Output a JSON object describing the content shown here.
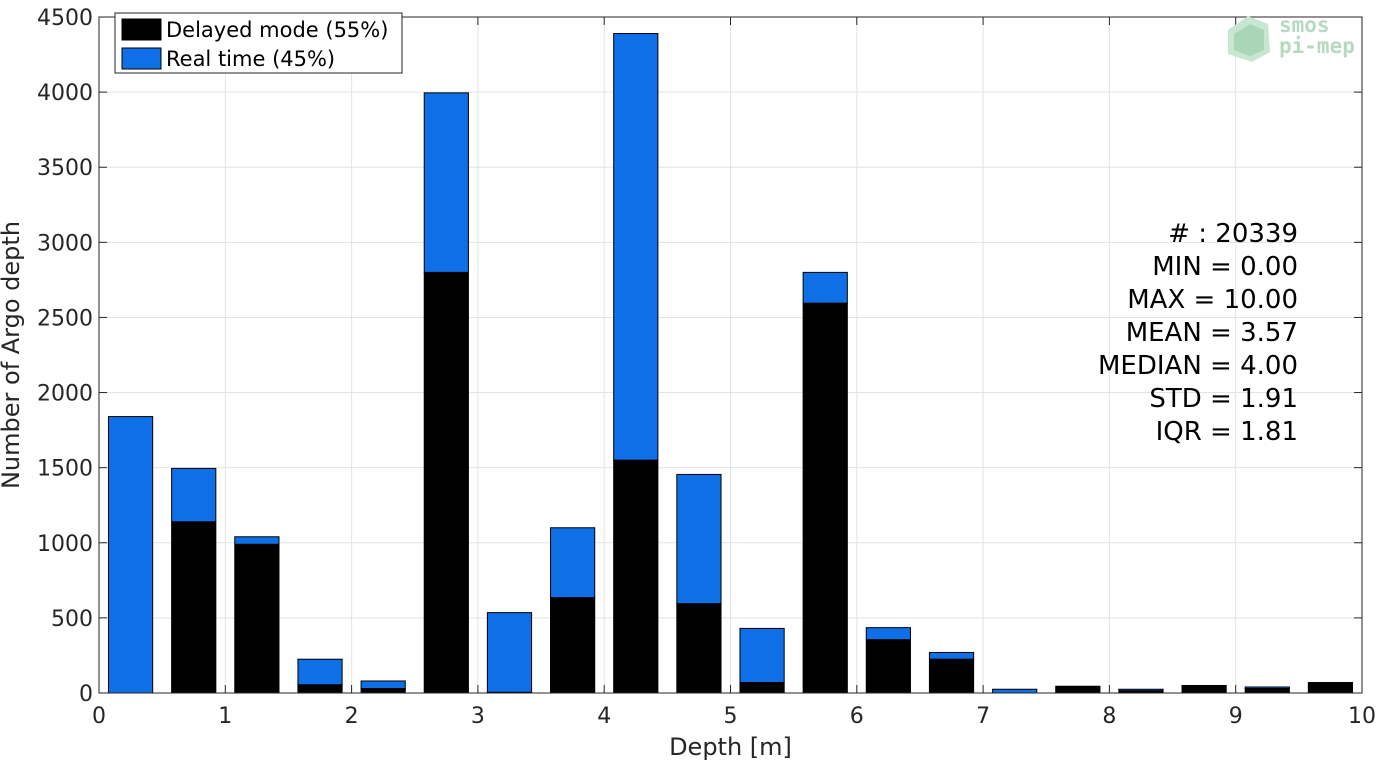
{
  "chart_data": {
    "type": "bar",
    "stacked": true,
    "xlabel": "Depth [m]",
    "ylabel": "Number of Argo depth",
    "xlim": [
      0,
      10
    ],
    "ylim": [
      0,
      4500
    ],
    "xticks": [
      "0",
      "1",
      "2",
      "3",
      "4",
      "5",
      "6",
      "7",
      "8",
      "9",
      "10"
    ],
    "yticks": [
      "0",
      "500",
      "1000",
      "1500",
      "2000",
      "2500",
      "3000",
      "3500",
      "4000",
      "4500"
    ],
    "grid": true,
    "legend_position": "top-left",
    "bin_centers": [
      0.25,
      0.75,
      1.25,
      1.75,
      2.25,
      2.75,
      3.25,
      3.75,
      4.25,
      4.75,
      5.25,
      5.75,
      6.25,
      6.75,
      7.25,
      7.75,
      8.25,
      8.75,
      9.25,
      9.75
    ],
    "series": [
      {
        "name": "Delayed mode (55%)",
        "color": "#000000",
        "values": [
          0,
          1140,
          990,
          55,
          30,
          2800,
          5,
          635,
          1550,
          595,
          70,
          2595,
          355,
          225,
          0,
          45,
          15,
          50,
          30,
          70
        ]
      },
      {
        "name": "Real time (45%)",
        "color": "#0f6fe6",
        "values": [
          1840,
          355,
          50,
          170,
          50,
          1195,
          530,
          465,
          2840,
          860,
          360,
          205,
          80,
          45,
          25,
          0,
          10,
          0,
          10,
          0
        ]
      }
    ],
    "stats": [
      "# : 20339",
      "MIN = 0.00",
      "MAX =  10.00",
      "MEAN = 3.57",
      "MEDIAN = 4.00",
      "STD = 1.91",
      "IQR = 1.81"
    ]
  },
  "logo": {
    "line1": "smos",
    "line2": "pi-mep"
  }
}
